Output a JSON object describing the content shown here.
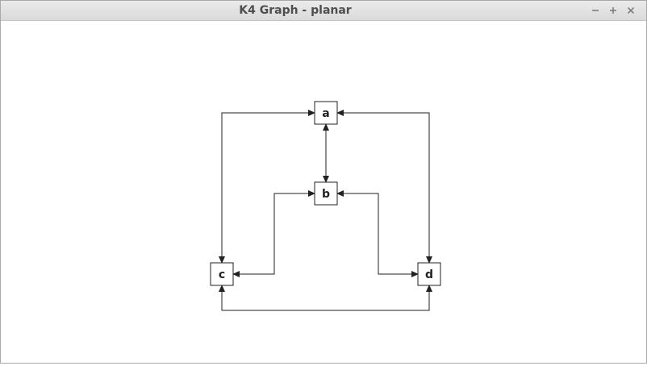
{
  "window": {
    "title": "K4 Graph - planar",
    "controls": [
      {
        "name": "minimize",
        "icon": "minus-icon"
      },
      {
        "name": "maximize",
        "icon": "plus-icon"
      },
      {
        "name": "close",
        "icon": "close-icon"
      }
    ]
  },
  "graph": {
    "nodes": [
      {
        "id": "a",
        "label": "a"
      },
      {
        "id": "b",
        "label": "b"
      },
      {
        "id": "c",
        "label": "c"
      },
      {
        "id": "d",
        "label": "d"
      }
    ],
    "edges": [
      {
        "from": "a",
        "to": "b",
        "directed": "both"
      },
      {
        "from": "a",
        "to": "c",
        "directed": "both"
      },
      {
        "from": "a",
        "to": "d",
        "directed": "both"
      },
      {
        "from": "b",
        "to": "c",
        "directed": "both"
      },
      {
        "from": "b",
        "to": "d",
        "directed": "both"
      },
      {
        "from": "c",
        "to": "d",
        "directed": "both"
      }
    ],
    "colors": {
      "edge": "#222222",
      "node_border": "#222222",
      "node_fill": "#ffffff"
    }
  }
}
